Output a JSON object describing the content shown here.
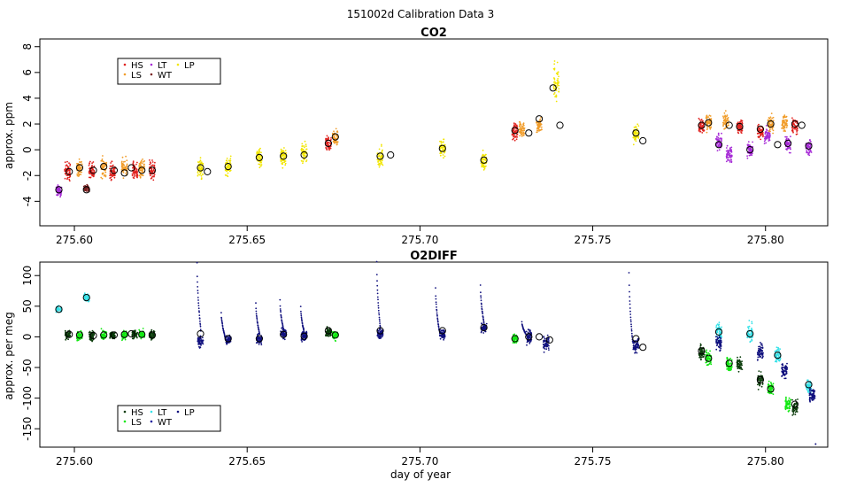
{
  "figure_title": "151002d   Calibration Data 3",
  "x_axis_label": "day of year",
  "chart_data": [
    {
      "type": "scatter",
      "title": "CO2",
      "ylabel": "approx. ppm",
      "xlim": [
        275.59,
        275.818
      ],
      "ylim": [
        -5.9,
        8.6
      ],
      "x_ticks": [
        275.6,
        275.65,
        275.7,
        275.75,
        275.8
      ],
      "x_tick_labels": [
        "275.60",
        "275.65",
        "275.70",
        "275.75",
        "275.80"
      ],
      "y_ticks": [
        -4,
        -2,
        0,
        2,
        4,
        6,
        8
      ],
      "y_tick_labels": [
        "-4",
        "-2",
        "0",
        "2",
        "4",
        "6",
        "8"
      ],
      "legend": [
        {
          "label": "HS",
          "color": "#e0221f"
        },
        {
          "label": "LT",
          "color": "#a62bd6"
        },
        {
          "label": "LP",
          "color": "#f2e600"
        },
        {
          "label": "LS",
          "color": "#f19d2a"
        },
        {
          "label": "WT",
          "color": "#7a2020"
        }
      ],
      "legend_position": "top-left",
      "series": [
        {
          "name": "LT",
          "color": "#a62bd6",
          "clusters": [
            {
              "x": 275.5955,
              "y": -3.2,
              "spread": 0.7
            },
            {
              "x": 275.7865,
              "y": 0.6,
              "spread": 1.0
            },
            {
              "x": 275.7895,
              "y": -0.3,
              "spread": 1.0
            },
            {
              "x": 275.7955,
              "y": 0.0,
              "spread": 1.0
            },
            {
              "x": 275.8005,
              "y": 1.1,
              "spread": 1.0
            },
            {
              "x": 275.8065,
              "y": 0.5,
              "spread": 1.0
            },
            {
              "x": 275.8125,
              "y": 0.2,
              "spread": 1.0
            }
          ]
        },
        {
          "name": "HS",
          "color": "#e0221f",
          "clusters": [
            {
              "x": 275.598,
              "y": -1.7,
              "spread": 1.2
            },
            {
              "x": 275.605,
              "y": -1.7,
              "spread": 1.1
            },
            {
              "x": 275.611,
              "y": -1.7,
              "spread": 1.1
            },
            {
              "x": 275.6175,
              "y": -1.6,
              "spread": 1.1
            },
            {
              "x": 275.6225,
              "y": -1.6,
              "spread": 1.1
            },
            {
              "x": 275.6735,
              "y": 0.5,
              "spread": 0.9
            },
            {
              "x": 275.7275,
              "y": 1.4,
              "spread": 1.0
            },
            {
              "x": 275.7815,
              "y": 1.9,
              "spread": 1.0
            },
            {
              "x": 275.7925,
              "y": 1.8,
              "spread": 1.0
            },
            {
              "x": 275.7985,
              "y": 1.4,
              "spread": 1.0
            },
            {
              "x": 275.8085,
              "y": 1.8,
              "spread": 1.0
            }
          ]
        },
        {
          "name": "LS",
          "color": "#f19d2a",
          "clusters": [
            {
              "x": 275.6015,
              "y": -1.4,
              "spread": 1.1
            },
            {
              "x": 275.6085,
              "y": -1.4,
              "spread": 1.1
            },
            {
              "x": 275.6145,
              "y": -1.4,
              "spread": 1.1
            },
            {
              "x": 275.6195,
              "y": -1.4,
              "spread": 1.1
            },
            {
              "x": 275.6755,
              "y": 1.0,
              "spread": 0.9
            },
            {
              "x": 275.7295,
              "y": 1.6,
              "spread": 1.0
            },
            {
              "x": 275.7345,
              "y": 1.8,
              "spread": 1.0
            },
            {
              "x": 275.7835,
              "y": 2.1,
              "spread": 1.0
            },
            {
              "x": 275.7885,
              "y": 2.2,
              "spread": 1.0
            },
            {
              "x": 275.8015,
              "y": 2.0,
              "spread": 1.0
            },
            {
              "x": 275.8055,
              "y": 2.1,
              "spread": 1.0
            }
          ]
        },
        {
          "name": "WT",
          "color": "#7a2020",
          "clusters": [
            {
              "x": 275.6035,
              "y": -3.0,
              "spread": 0.5
            }
          ]
        },
        {
          "name": "LP",
          "color": "#f2e600",
          "clusters": [
            {
              "x": 275.6365,
              "y": -1.4,
              "spread": 1.2
            },
            {
              "x": 275.6445,
              "y": -1.3,
              "spread": 1.2
            },
            {
              "x": 275.6535,
              "y": -0.6,
              "spread": 1.2
            },
            {
              "x": 275.6605,
              "y": -0.5,
              "spread": 1.2
            },
            {
              "x": 275.6665,
              "y": -0.3,
              "spread": 1.2
            },
            {
              "x": 275.6885,
              "y": -0.6,
              "spread": 1.2
            },
            {
              "x": 275.7065,
              "y": 0.1,
              "spread": 1.2
            },
            {
              "x": 275.7185,
              "y": -0.8,
              "spread": 1.2
            },
            {
              "x": 275.7395,
              "y": 5.2,
              "spread": 2.6
            },
            {
              "x": 275.7625,
              "y": 1.2,
              "spread": 1.2
            }
          ]
        }
      ],
      "means": [
        {
          "x": 275.5955,
          "y": -3.1
        },
        {
          "x": 275.5985,
          "y": -1.7
        },
        {
          "x": 275.6015,
          "y": -1.4
        },
        {
          "x": 275.6035,
          "y": -3.1
        },
        {
          "x": 275.6055,
          "y": -1.6
        },
        {
          "x": 275.6085,
          "y": -1.3
        },
        {
          "x": 275.6115,
          "y": -1.6
        },
        {
          "x": 275.6145,
          "y": -1.8
        },
        {
          "x": 275.6165,
          "y": -1.4
        },
        {
          "x": 275.6195,
          "y": -1.6
        },
        {
          "x": 275.6225,
          "y": -1.6
        },
        {
          "x": 275.6365,
          "y": -1.4
        },
        {
          "x": 275.6385,
          "y": -1.7
        },
        {
          "x": 275.6445,
          "y": -1.3
        },
        {
          "x": 275.6535,
          "y": -0.6
        },
        {
          "x": 275.6605,
          "y": -0.5
        },
        {
          "x": 275.6665,
          "y": -0.4
        },
        {
          "x": 275.6735,
          "y": 0.5
        },
        {
          "x": 275.6755,
          "y": 1.0
        },
        {
          "x": 275.6885,
          "y": -0.5
        },
        {
          "x": 275.6915,
          "y": -0.4
        },
        {
          "x": 275.7065,
          "y": 0.1
        },
        {
          "x": 275.7185,
          "y": -0.8
        },
        {
          "x": 275.7275,
          "y": 1.5
        },
        {
          "x": 275.7315,
          "y": 1.3
        },
        {
          "x": 275.7345,
          "y": 2.4
        },
        {
          "x": 275.7385,
          "y": 4.8
        },
        {
          "x": 275.7405,
          "y": 1.9
        },
        {
          "x": 275.7625,
          "y": 1.3
        },
        {
          "x": 275.7645,
          "y": 0.7
        },
        {
          "x": 275.7815,
          "y": 1.9
        },
        {
          "x": 275.7835,
          "y": 2.1
        },
        {
          "x": 275.7865,
          "y": 0.4
        },
        {
          "x": 275.7895,
          "y": 1.9
        },
        {
          "x": 275.7925,
          "y": 1.8
        },
        {
          "x": 275.7955,
          "y": 0.0
        },
        {
          "x": 275.7985,
          "y": 1.6
        },
        {
          "x": 275.8015,
          "y": 2.0
        },
        {
          "x": 275.8035,
          "y": 0.4
        },
        {
          "x": 275.8065,
          "y": 0.5
        },
        {
          "x": 275.8085,
          "y": 2.0
        },
        {
          "x": 275.8105,
          "y": 1.9
        },
        {
          "x": 275.8125,
          "y": 0.3
        }
      ]
    },
    {
      "type": "scatter",
      "title": "O2DIFF",
      "ylabel": "approx. per meg",
      "xlim": [
        275.59,
        275.818
      ],
      "ylim": [
        -180,
        122
      ],
      "x_ticks": [
        275.6,
        275.65,
        275.7,
        275.75,
        275.8
      ],
      "x_tick_labels": [
        "275.60",
        "275.65",
        "275.70",
        "275.75",
        "275.80"
      ],
      "y_ticks": [
        -150,
        -100,
        -50,
        0,
        50,
        100
      ],
      "y_tick_labels": [
        "-150",
        "-100",
        "-50",
        "0",
        "50",
        "100"
      ],
      "legend": [
        {
          "label": "HS",
          "color": "#0a3b0a"
        },
        {
          "label": "LT",
          "color": "#35e2e8"
        },
        {
          "label": "LP",
          "color": "#11117e"
        },
        {
          "label": "LS",
          "color": "#13e813"
        },
        {
          "label": "WT",
          "color": "#1a1a9e"
        }
      ],
      "legend_position": "bottom-left",
      "series": [
        {
          "name": "LT",
          "color": "#35e2e8",
          "clusters": [
            {
              "x": 275.5955,
              "y": 45,
              "spread": 8
            },
            {
              "x": 275.6035,
              "y": 64,
              "spread": 10
            },
            {
              "x": 275.7865,
              "y": 8,
              "spread": 25
            },
            {
              "x": 275.7955,
              "y": 5,
              "spread": 25
            },
            {
              "x": 275.8035,
              "y": -30,
              "spread": 20
            },
            {
              "x": 275.8125,
              "y": -80,
              "spread": 20
            }
          ]
        },
        {
          "name": "HS",
          "color": "#0a3b0a",
          "clusters": [
            {
              "x": 275.598,
              "y": 3,
              "spread": 12
            },
            {
              "x": 275.605,
              "y": 2,
              "spread": 12
            },
            {
              "x": 275.611,
              "y": 3,
              "spread": 12
            },
            {
              "x": 275.6175,
              "y": 3,
              "spread": 12
            },
            {
              "x": 275.6225,
              "y": 3,
              "spread": 12
            },
            {
              "x": 275.6735,
              "y": 8,
              "spread": 12
            },
            {
              "x": 275.7815,
              "y": -25,
              "spread": 20
            },
            {
              "x": 275.7925,
              "y": -45,
              "spread": 20
            },
            {
              "x": 275.7985,
              "y": -70,
              "spread": 20
            },
            {
              "x": 275.8085,
              "y": -115,
              "spread": 20
            }
          ]
        },
        {
          "name": "LS",
          "color": "#13e813",
          "clusters": [
            {
              "x": 275.6015,
              "y": 2,
              "spread": 12
            },
            {
              "x": 275.6085,
              "y": 3,
              "spread": 12
            },
            {
              "x": 275.6145,
              "y": 3,
              "spread": 12
            },
            {
              "x": 275.6195,
              "y": 3,
              "spread": 12
            },
            {
              "x": 275.6755,
              "y": 2,
              "spread": 12
            },
            {
              "x": 275.7275,
              "y": -3,
              "spread": 12
            },
            {
              "x": 275.7835,
              "y": -35,
              "spread": 20
            },
            {
              "x": 275.7895,
              "y": -45,
              "spread": 20
            },
            {
              "x": 275.8015,
              "y": -85,
              "spread": 20
            },
            {
              "x": 275.8065,
              "y": -110,
              "spread": 20
            }
          ]
        },
        {
          "name": "LP",
          "color": "#11117e",
          "clusters": [
            {
              "x": 275.6365,
              "y": -8,
              "spread": 14
            },
            {
              "x": 275.6445,
              "y": -5,
              "spread": 14
            },
            {
              "x": 275.6535,
              "y": -3,
              "spread": 14
            },
            {
              "x": 275.6605,
              "y": 5,
              "spread": 14
            },
            {
              "x": 275.6665,
              "y": 2,
              "spread": 14
            },
            {
              "x": 275.6885,
              "y": 5,
              "spread": 14
            },
            {
              "x": 275.7065,
              "y": 5,
              "spread": 14
            },
            {
              "x": 275.7185,
              "y": 15,
              "spread": 14
            },
            {
              "x": 275.7315,
              "y": 0,
              "spread": 20
            },
            {
              "x": 275.7365,
              "y": -10,
              "spread": 20
            },
            {
              "x": 275.7625,
              "y": -15,
              "spread": 20
            },
            {
              "x": 275.7865,
              "y": -10,
              "spread": 20
            },
            {
              "x": 275.7985,
              "y": -25,
              "spread": 20
            },
            {
              "x": 275.8055,
              "y": -55,
              "spread": 20
            },
            {
              "x": 275.8135,
              "y": -95,
              "spread": 20
            }
          ]
        }
      ],
      "spikes": [
        {
          "x": 275.6355,
          "from": 120,
          "to": 10
        },
        {
          "x": 275.6425,
          "from": 40,
          "to": 0
        },
        {
          "x": 275.6525,
          "from": 55,
          "to": 5
        },
        {
          "x": 275.6595,
          "from": 60,
          "to": 10
        },
        {
          "x": 275.6655,
          "from": 50,
          "to": 5
        },
        {
          "x": 275.6875,
          "from": 122,
          "to": 10
        },
        {
          "x": 275.7045,
          "from": 80,
          "to": 10
        },
        {
          "x": 275.7175,
          "from": 85,
          "to": 20
        },
        {
          "x": 275.7295,
          "from": 25,
          "to": 5
        },
        {
          "x": 275.7605,
          "from": 105,
          "to": -10
        }
      ],
      "outlier": {
        "x": 275.8145,
        "y": -175
      },
      "means": [
        {
          "x": 275.5955,
          "y": 45
        },
        {
          "x": 275.5985,
          "y": 4
        },
        {
          "x": 275.6015,
          "y": 3
        },
        {
          "x": 275.6035,
          "y": 64
        },
        {
          "x": 275.6055,
          "y": 2
        },
        {
          "x": 275.6085,
          "y": 3
        },
        {
          "x": 275.6115,
          "y": 3
        },
        {
          "x": 275.6145,
          "y": 4
        },
        {
          "x": 275.6165,
          "y": 5
        },
        {
          "x": 275.6195,
          "y": 4
        },
        {
          "x": 275.6225,
          "y": 3
        },
        {
          "x": 275.6365,
          "y": 5
        },
        {
          "x": 275.6445,
          "y": -3
        },
        {
          "x": 275.6535,
          "y": -3
        },
        {
          "x": 275.6605,
          "y": 4
        },
        {
          "x": 275.6665,
          "y": 1
        },
        {
          "x": 275.6735,
          "y": 10
        },
        {
          "x": 275.6755,
          "y": 3
        },
        {
          "x": 275.6885,
          "y": 10
        },
        {
          "x": 275.7065,
          "y": 10
        },
        {
          "x": 275.7185,
          "y": 15
        },
        {
          "x": 275.7275,
          "y": -3
        },
        {
          "x": 275.7315,
          "y": 0
        },
        {
          "x": 275.7345,
          "y": 0
        },
        {
          "x": 275.7375,
          "y": -5
        },
        {
          "x": 275.7625,
          "y": -3
        },
        {
          "x": 275.7645,
          "y": -17
        },
        {
          "x": 275.7815,
          "y": -23
        },
        {
          "x": 275.7835,
          "y": -35
        },
        {
          "x": 275.7865,
          "y": 8
        },
        {
          "x": 275.7895,
          "y": -43
        },
        {
          "x": 275.7955,
          "y": 5
        },
        {
          "x": 275.7985,
          "y": -70
        },
        {
          "x": 275.8015,
          "y": -85
        },
        {
          "x": 275.8035,
          "y": -30
        },
        {
          "x": 275.8085,
          "y": -110
        },
        {
          "x": 275.8125,
          "y": -78
        }
      ]
    }
  ]
}
